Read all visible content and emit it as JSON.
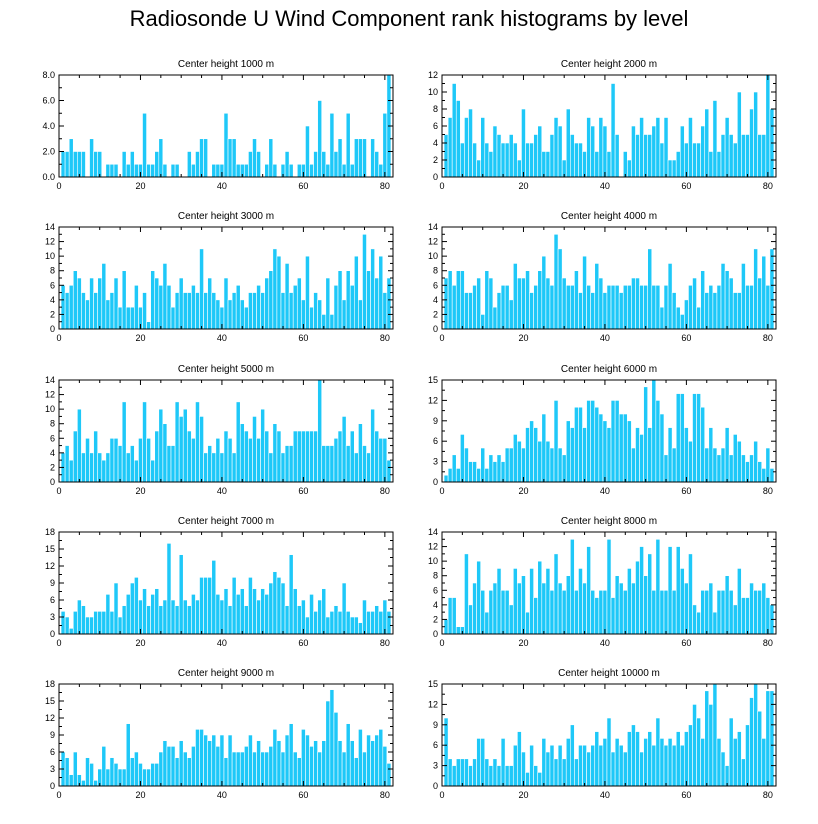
{
  "title": "Radiosonde U Wind Component rank histograms by level",
  "colors": {
    "bar": "#1EC8F8",
    "bar_edge": "#ffffff",
    "axis": "#000000"
  },
  "chart_data": [
    {
      "type": "bar",
      "title": "Center height 1000 m",
      "xlim": [
        0,
        82
      ],
      "ylim": [
        0,
        8
      ],
      "xticks": [
        0,
        20,
        40,
        60,
        80
      ],
      "yticks": [
        0,
        2,
        4,
        6,
        8
      ],
      "ytick_labels": [
        "0.0",
        "2.0",
        "4.0",
        "6.0",
        "8.0"
      ],
      "values": [
        2,
        2,
        3,
        2,
        2,
        2,
        0,
        3,
        2,
        2,
        0,
        1,
        1,
        1,
        0,
        2,
        1,
        2,
        1,
        1,
        5,
        1,
        1,
        2,
        3,
        1,
        0,
        1,
        1,
        0,
        0,
        2,
        1,
        2,
        3,
        3,
        0,
        1,
        1,
        1,
        5,
        3,
        3,
        1,
        1,
        1,
        2,
        3,
        2,
        0,
        1,
        3,
        1,
        0,
        1,
        2,
        1,
        0,
        1,
        1,
        4,
        1,
        2,
        6,
        2,
        1,
        5,
        2,
        3,
        1,
        5,
        1,
        3,
        3,
        3,
        0,
        3,
        2,
        1,
        5,
        8
      ]
    },
    {
      "type": "bar",
      "title": "Center height 2000 m",
      "xlim": [
        0,
        82
      ],
      "ylim": [
        0,
        12
      ],
      "xticks": [
        0,
        20,
        40,
        60,
        80
      ],
      "yticks": [
        0,
        2,
        4,
        6,
        8,
        10,
        12
      ],
      "ytick_labels": [
        "0",
        "2",
        "4",
        "6",
        "8",
        "10",
        "12"
      ],
      "values": [
        5,
        7,
        11,
        9,
        4,
        7,
        8,
        4,
        2,
        7,
        4,
        3,
        6,
        5,
        4,
        4,
        5,
        4,
        2,
        8,
        4,
        4,
        5,
        6,
        3,
        3,
        5,
        7,
        6,
        2,
        8,
        5,
        4,
        4,
        3,
        7,
        6,
        3,
        7,
        6,
        3,
        11,
        5,
        0,
        3,
        2,
        6,
        5,
        7,
        5,
        5,
        6,
        7,
        4,
        7,
        2,
        2,
        3,
        6,
        4,
        7,
        4,
        4,
        6,
        8,
        3,
        9,
        3,
        5,
        7,
        5,
        4,
        10,
        5,
        5,
        8,
        10,
        5,
        5,
        12,
        8
      ]
    },
    {
      "type": "bar",
      "title": "Center height 3000 m",
      "xlim": [
        0,
        82
      ],
      "ylim": [
        0,
        14
      ],
      "xticks": [
        0,
        20,
        40,
        60,
        80
      ],
      "yticks": [
        0,
        2,
        4,
        6,
        8,
        10,
        12,
        14
      ],
      "ytick_labels": [
        "0",
        "2",
        "4",
        "6",
        "8",
        "10",
        "12",
        "14"
      ],
      "values": [
        6,
        5,
        6,
        8,
        7,
        5,
        4,
        7,
        5,
        7,
        9,
        4,
        5,
        7,
        3,
        8,
        3,
        3,
        6,
        3,
        5,
        1,
        8,
        7,
        6,
        9,
        6,
        3,
        5,
        7,
        5,
        5,
        6,
        5,
        11,
        5,
        7,
        5,
        4,
        3,
        7,
        4,
        5,
        6,
        4,
        3,
        5,
        5,
        6,
        5,
        7,
        8,
        11,
        10,
        5,
        9,
        5,
        6,
        7,
        4,
        10,
        3,
        5,
        4,
        2,
        7,
        2,
        6,
        8,
        4,
        8,
        6,
        10,
        4,
        13,
        8,
        11,
        7,
        10,
        5,
        7
      ]
    },
    {
      "type": "bar",
      "title": "Center height 4000 m",
      "xlim": [
        0,
        82
      ],
      "ylim": [
        0,
        14
      ],
      "xticks": [
        0,
        20,
        40,
        60,
        80
      ],
      "yticks": [
        0,
        2,
        4,
        6,
        8,
        10,
        12,
        14
      ],
      "ytick_labels": [
        "0",
        "2",
        "4",
        "6",
        "8",
        "10",
        "12",
        "14"
      ],
      "values": [
        7,
        8,
        6,
        8,
        8,
        5,
        5,
        6,
        7,
        2,
        8,
        7,
        3,
        5,
        6,
        6,
        4,
        9,
        7,
        7,
        8,
        5,
        6,
        8,
        10,
        7,
        6,
        13,
        11,
        7,
        6,
        6,
        8,
        5,
        10,
        6,
        5,
        9,
        7,
        5,
        6,
        6,
        6,
        5,
        6,
        6,
        7,
        7,
        6,
        6,
        11,
        6,
        6,
        3,
        6,
        9,
        5,
        3,
        2,
        4,
        6,
        7,
        3,
        8,
        5,
        6,
        5,
        6,
        9,
        8,
        7,
        5,
        5,
        9,
        6,
        6,
        11,
        7,
        10,
        6,
        11
      ]
    },
    {
      "type": "bar",
      "title": "Center height 5000 m",
      "xlim": [
        0,
        82
      ],
      "ylim": [
        0,
        14
      ],
      "xticks": [
        0,
        20,
        40,
        60,
        80
      ],
      "yticks": [
        0,
        2,
        4,
        6,
        8,
        10,
        12,
        14
      ],
      "ytick_labels": [
        "0",
        "2",
        "4",
        "6",
        "8",
        "10",
        "12",
        "14"
      ],
      "values": [
        4,
        5,
        3,
        7,
        10,
        4,
        6,
        4,
        7,
        4,
        3,
        4,
        6,
        6,
        5,
        11,
        4,
        5,
        3,
        6,
        11,
        6,
        3,
        7,
        10,
        8,
        5,
        5,
        11,
        9,
        10,
        7,
        6,
        11,
        9,
        4,
        5,
        4,
        6,
        4,
        7,
        6,
        4,
        11,
        8,
        7,
        6,
        9,
        6,
        10,
        7,
        4,
        8,
        7,
        4,
        5,
        5,
        7,
        7,
        7,
        7,
        7,
        7,
        14,
        5,
        5,
        5,
        6,
        7,
        9,
        5,
        7,
        4,
        8,
        5,
        4,
        10,
        7,
        6,
        6,
        3
      ]
    },
    {
      "type": "bar",
      "title": "Center height 6000 m",
      "xlim": [
        0,
        82
      ],
      "ylim": [
        0,
        15
      ],
      "xticks": [
        0,
        20,
        40,
        60,
        80
      ],
      "yticks": [
        0,
        3,
        6,
        9,
        12,
        15
      ],
      "ytick_labels": [
        "0",
        "3",
        "6",
        "9",
        "12",
        "15"
      ],
      "values": [
        1,
        2,
        4,
        2,
        7,
        5,
        3,
        3,
        2,
        5,
        2,
        4,
        3,
        4,
        3,
        5,
        5,
        7,
        6,
        5,
        8,
        9,
        8,
        6,
        10,
        6,
        5,
        12,
        5,
        4,
        9,
        8,
        11,
        11,
        8,
        12,
        12,
        11,
        10,
        9,
        8,
        12,
        12,
        10,
        10,
        9,
        5,
        8,
        7,
        14,
        8,
        15,
        12,
        10,
        4,
        8,
        5,
        13,
        13,
        8,
        6,
        13,
        13,
        11,
        5,
        8,
        5,
        4,
        5,
        8,
        4,
        7,
        6,
        4,
        3,
        4,
        6,
        3,
        2,
        5,
        2
      ]
    },
    {
      "type": "bar",
      "title": "Center height 7000 m",
      "xlim": [
        0,
        82
      ],
      "ylim": [
        0,
        18
      ],
      "xticks": [
        0,
        20,
        40,
        60,
        80
      ],
      "yticks": [
        0,
        3,
        6,
        9,
        12,
        15,
        18
      ],
      "ytick_labels": [
        "0",
        "3",
        "6",
        "9",
        "12",
        "15",
        "18"
      ],
      "values": [
        4,
        3,
        1,
        4,
        6,
        5,
        3,
        3,
        4,
        4,
        4,
        7,
        4,
        9,
        3,
        5,
        7,
        9,
        10,
        6,
        8,
        5,
        7,
        8,
        5,
        6,
        16,
        6,
        5,
        14,
        6,
        5,
        7,
        6,
        10,
        10,
        10,
        13,
        7,
        6,
        8,
        5,
        10,
        7,
        8,
        5,
        10,
        8,
        6,
        8,
        7,
        9,
        11,
        10,
        9,
        5,
        14,
        8,
        5,
        6,
        3,
        7,
        4,
        6,
        8,
        3,
        4,
        5,
        4,
        9,
        4,
        3,
        3,
        2,
        6,
        4,
        4,
        5,
        4,
        6,
        4
      ]
    },
    {
      "type": "bar",
      "title": "Center height 8000 m",
      "xlim": [
        0,
        82
      ],
      "ylim": [
        0,
        14
      ],
      "xticks": [
        0,
        20,
        40,
        60,
        80
      ],
      "yticks": [
        0,
        2,
        4,
        6,
        8,
        10,
        12,
        14
      ],
      "ytick_labels": [
        "0",
        "2",
        "4",
        "6",
        "8",
        "10",
        "12",
        "14"
      ],
      "values": [
        2,
        5,
        5,
        1,
        1,
        11,
        4,
        7,
        10,
        6,
        3,
        6,
        7,
        9,
        6,
        6,
        4,
        9,
        7,
        8,
        3,
        9,
        5,
        10,
        7,
        9,
        6,
        11,
        7,
        6,
        8,
        13,
        6,
        9,
        7,
        12,
        6,
        5,
        6,
        6,
        13,
        5,
        8,
        7,
        6,
        9,
        7,
        10,
        12,
        8,
        11,
        6,
        13,
        6,
        6,
        12,
        6,
        12,
        9,
        7,
        11,
        4,
        3,
        6,
        6,
        7,
        3,
        6,
        6,
        8,
        6,
        4,
        9,
        5,
        5,
        7,
        6,
        6,
        7,
        5,
        4
      ]
    },
    {
      "type": "bar",
      "title": "Center height 9000 m",
      "xlim": [
        0,
        82
      ],
      "ylim": [
        0,
        18
      ],
      "xticks": [
        0,
        20,
        40,
        60,
        80
      ],
      "yticks": [
        0,
        3,
        6,
        9,
        12,
        15,
        18
      ],
      "ytick_labels": [
        "0",
        "3",
        "6",
        "9",
        "12",
        "15",
        "18"
      ],
      "values": [
        6,
        5,
        2,
        6,
        2,
        1,
        5,
        4,
        1,
        3,
        7,
        3,
        5,
        4,
        3,
        3,
        11,
        5,
        6,
        4,
        3,
        3,
        4,
        4,
        6,
        8,
        7,
        7,
        5,
        8,
        6,
        5,
        7,
        10,
        10,
        9,
        8,
        9,
        7,
        9,
        5,
        9,
        6,
        6,
        6,
        7,
        9,
        6,
        8,
        6,
        6,
        7,
        10,
        8,
        6,
        9,
        11,
        6,
        5,
        10,
        9,
        7,
        8,
        6,
        8,
        15,
        17,
        13,
        8,
        6,
        11,
        8,
        5,
        10,
        6,
        9,
        8,
        9,
        10,
        7,
        4
      ]
    },
    {
      "type": "bar",
      "title": "Center height 10000 m",
      "xlim": [
        0,
        82
      ],
      "ylim": [
        0,
        15
      ],
      "xticks": [
        0,
        20,
        40,
        60,
        80
      ],
      "yticks": [
        0,
        3,
        6,
        9,
        12,
        15
      ],
      "ytick_labels": [
        "0",
        "3",
        "6",
        "9",
        "12",
        "15"
      ],
      "values": [
        10,
        4,
        3,
        4,
        4,
        4,
        3,
        4,
        7,
        7,
        4,
        3,
        4,
        3,
        7,
        3,
        3,
        6,
        8,
        5,
        2,
        6,
        3,
        2,
        7,
        5,
        6,
        4,
        6,
        4,
        7,
        9,
        4,
        6,
        6,
        5,
        6,
        8,
        6,
        7,
        10,
        5,
        7,
        6,
        5,
        8,
        9,
        8,
        5,
        7,
        8,
        6,
        10,
        7,
        6,
        7,
        6,
        8,
        6,
        8,
        9,
        12,
        10,
        7,
        14,
        12,
        15,
        7,
        5,
        3,
        10,
        7,
        8,
        4,
        9,
        13,
        15,
        11,
        7,
        14,
        14
      ]
    }
  ]
}
